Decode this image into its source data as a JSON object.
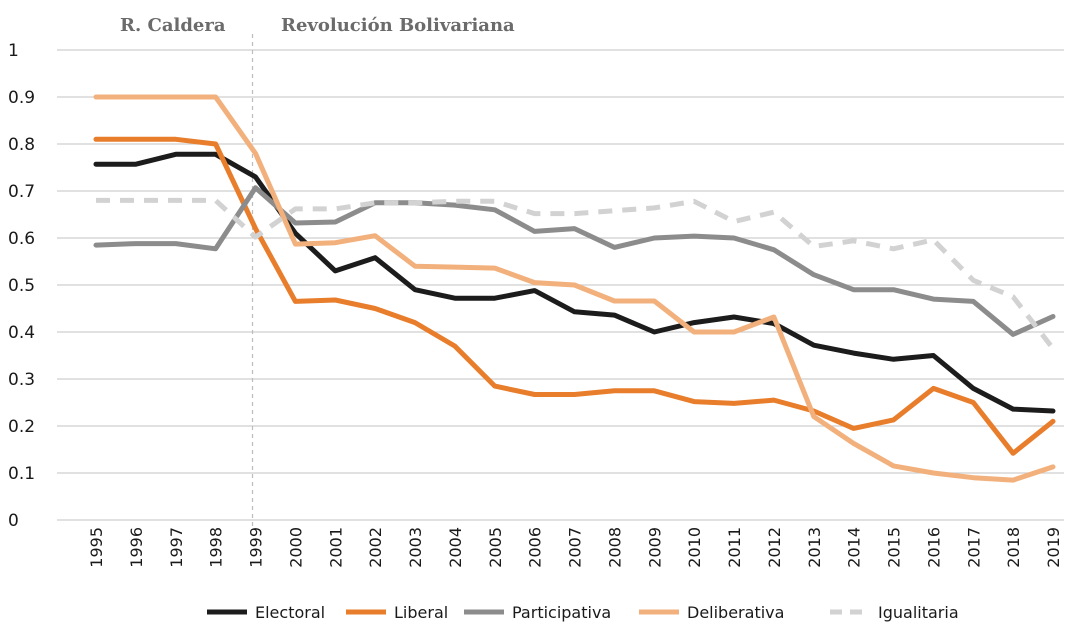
{
  "chart_data": {
    "type": "line",
    "x": [
      "1995",
      "1996",
      "1997",
      "1998",
      "1999",
      "2000",
      "2001",
      "2002",
      "2003",
      "2004",
      "2005",
      "2006",
      "2007",
      "2008",
      "2009",
      "2010",
      "2011",
      "2012",
      "2013",
      "2014",
      "2015",
      "2016",
      "2017",
      "2018",
      "2019"
    ],
    "ylim": [
      0,
      1
    ],
    "yticks": [
      "0",
      "0.1",
      "0.2",
      "0.3",
      "0.4",
      "0.5",
      "0.6",
      "0.7",
      "0.8",
      "0.9",
      "1"
    ],
    "grid": true,
    "periods": [
      {
        "label": "R. Caldera",
        "start": "1995"
      },
      {
        "label": "Revolución Bolivariana",
        "start": "1999"
      }
    ],
    "series": [
      {
        "name": "Electoral",
        "color": "#1c1c1c",
        "dashed": false,
        "values": [
          0.757,
          0.757,
          0.778,
          0.778,
          0.73,
          0.61,
          0.53,
          0.558,
          0.49,
          0.472,
          0.472,
          0.488,
          0.443,
          0.436,
          0.4,
          0.42,
          0.432,
          0.418,
          0.372,
          0.355,
          0.342,
          0.35,
          0.28,
          0.236,
          0.232
        ]
      },
      {
        "name": "Liberal",
        "color": "#e87d2b",
        "dashed": false,
        "values": [
          0.81,
          0.81,
          0.81,
          0.8,
          0.62,
          0.465,
          0.468,
          0.45,
          0.42,
          0.37,
          0.285,
          0.267,
          0.267,
          0.275,
          0.275,
          0.252,
          0.248,
          0.255,
          0.232,
          0.195,
          0.213,
          0.28,
          0.25,
          0.142,
          0.21
        ]
      },
      {
        "name": "Participativa",
        "color": "#8c8c8c",
        "dashed": false,
        "values": [
          0.585,
          0.588,
          0.588,
          0.577,
          0.707,
          0.632,
          0.634,
          0.675,
          0.675,
          0.67,
          0.66,
          0.614,
          0.62,
          0.58,
          0.6,
          0.604,
          0.6,
          0.575,
          0.522,
          0.49,
          0.49,
          0.47,
          0.465,
          0.395,
          0.433
        ]
      },
      {
        "name": "Deliberativa",
        "color": "#f2b07c",
        "dashed": false,
        "values": [
          0.9,
          0.9,
          0.9,
          0.9,
          0.78,
          0.587,
          0.59,
          0.605,
          0.54,
          0.538,
          0.536,
          0.505,
          0.5,
          0.466,
          0.466,
          0.4,
          0.4,
          0.432,
          0.22,
          0.163,
          0.115,
          0.1,
          0.09,
          0.085,
          0.113
        ]
      },
      {
        "name": "Igualitaria",
        "color": "#d2d2d2",
        "dashed": true,
        "values": [
          0.68,
          0.68,
          0.68,
          0.68,
          0.602,
          0.662,
          0.662,
          0.675,
          0.675,
          0.678,
          0.678,
          0.652,
          0.652,
          0.658,
          0.664,
          0.678,
          0.635,
          0.655,
          0.582,
          0.594,
          0.577,
          0.596,
          0.51,
          0.475,
          0.365
        ]
      }
    ]
  }
}
